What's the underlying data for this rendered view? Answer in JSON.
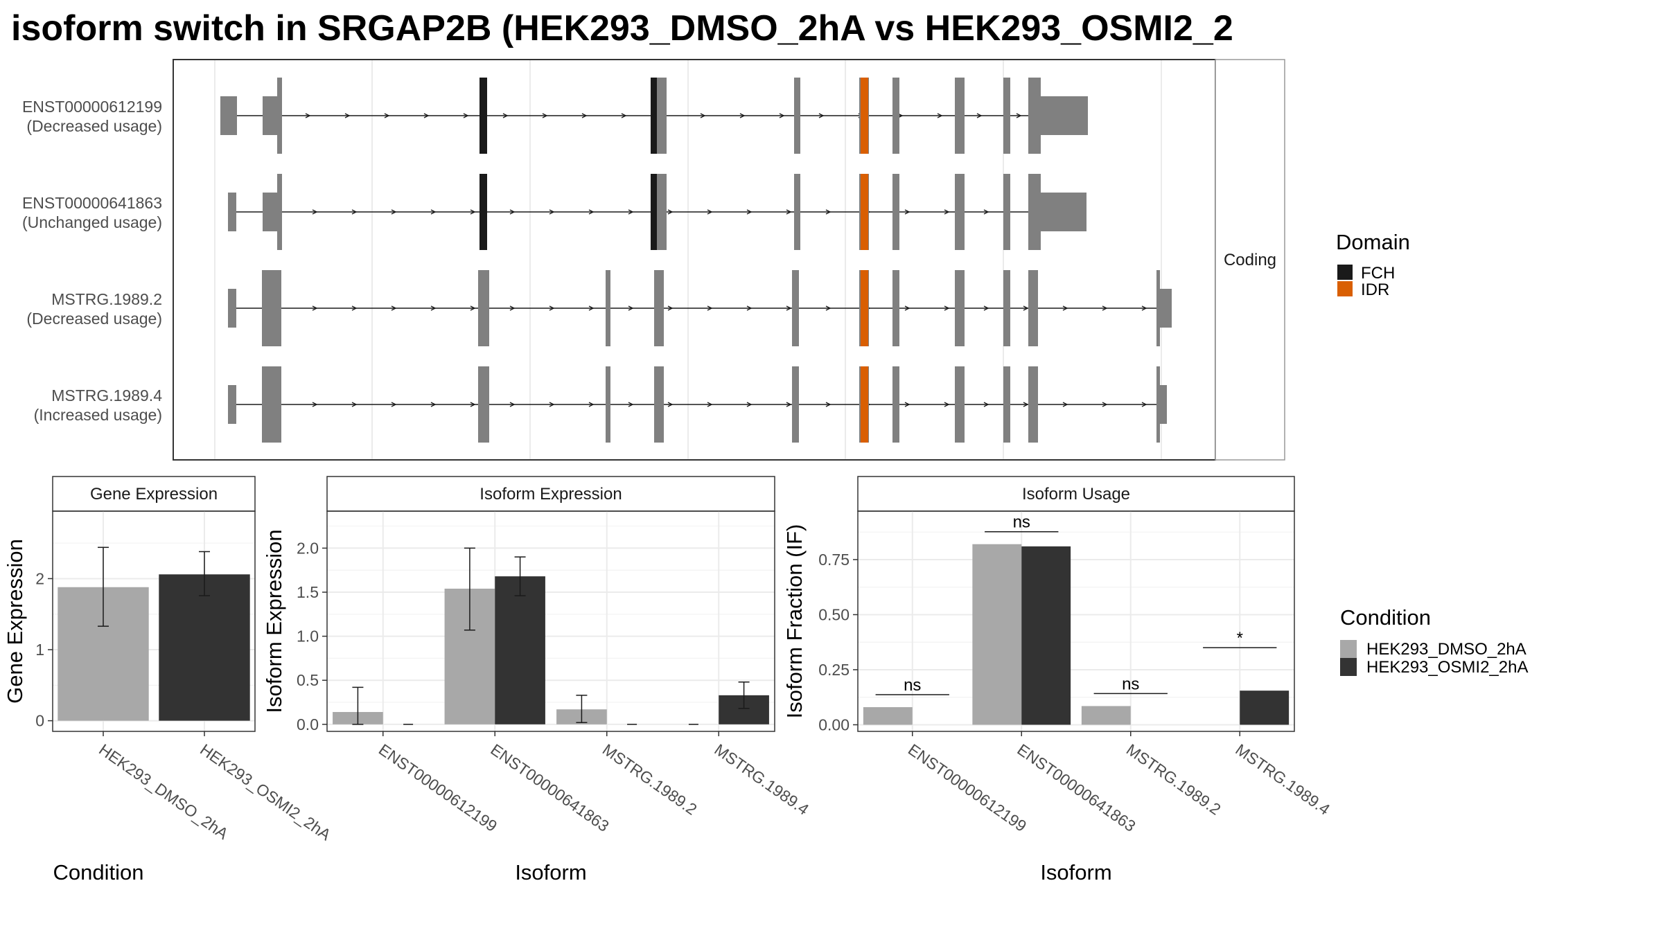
{
  "title": "isoform switch in SRGAP2B (HEK293_DMSO_2hA vs HEK293_OSMI2_2",
  "colors": {
    "dmso": "#a8a8a8",
    "osmi": "#333333",
    "exon": "#808080",
    "fch": "#1a1a1a",
    "idr": "#d95f02",
    "panel_border": "#333333",
    "strip_fill": "#ffffff",
    "grid": "#ebebeb"
  },
  "structure": {
    "strip_label": "Coding",
    "transcripts": [
      {
        "id": "ENST00000612199",
        "usage": "(Decreased usage)"
      },
      {
        "id": "ENST00000641863",
        "usage": "(Unchanged usage)"
      },
      {
        "id": "MSTRG.1989.2",
        "usage": "(Decreased usage)"
      },
      {
        "id": "MSTRG.1989.4",
        "usage": "(Increased usage)"
      }
    ]
  },
  "domain_legend": {
    "title": "Domain",
    "items": [
      {
        "label": "FCH",
        "color": "#1a1a1a"
      },
      {
        "label": "IDR",
        "color": "#d95f02"
      }
    ]
  },
  "condition_legend": {
    "title": "Condition",
    "items": [
      {
        "label": "HEK293_DMSO_2hA",
        "color": "#a8a8a8"
      },
      {
        "label": "HEK293_OSMI2_2hA",
        "color": "#333333"
      }
    ]
  },
  "chart_data": [
    {
      "type": "bar",
      "title": "Gene Expression",
      "xlabel": "Condition",
      "ylabel": "Gene Expression",
      "ylim": [
        -0.15,
        2.95
      ],
      "yticks": [
        0,
        1,
        2
      ],
      "categories": [
        "HEK293_DMSO_2hA",
        "HEK293_OSMI2_2hA"
      ],
      "values": [
        1.88,
        2.06
      ],
      "error_low": [
        1.33,
        1.76
      ],
      "error_high": [
        2.44,
        2.38
      ],
      "colors": [
        "#a8a8a8",
        "#333333"
      ]
    },
    {
      "type": "bar",
      "title": "Isoform Expression",
      "xlabel": "Isoform",
      "ylabel": "Isoform Expression",
      "ylim": [
        -0.08,
        2.42
      ],
      "yticks": [
        0.0,
        0.5,
        1.0,
        1.5,
        2.0
      ],
      "categories": [
        "ENST00000612199",
        "ENST00000641863",
        "MSTRG.1989.2",
        "MSTRG.1989.4"
      ],
      "series": [
        {
          "name": "HEK293_DMSO_2hA",
          "values": [
            0.14,
            1.54,
            0.17,
            0.0
          ],
          "error_low": [
            0.0,
            1.07,
            0.02,
            0.0
          ],
          "error_high": [
            0.42,
            2.0,
            0.33,
            0.0
          ]
        },
        {
          "name": "HEK293_OSMI2_2hA",
          "values": [
            0.0,
            1.68,
            0.0,
            0.33
          ],
          "error_low": [
            0.0,
            1.46,
            0.0,
            0.18
          ],
          "error_high": [
            0.0,
            1.9,
            0.0,
            0.48
          ]
        }
      ]
    },
    {
      "type": "bar",
      "title": "Isoform Usage",
      "xlabel": "Isoform",
      "ylabel": "Isoform Fraction (IF)",
      "ylim": [
        -0.03,
        0.97
      ],
      "yticks": [
        0.0,
        0.25,
        0.5,
        0.75
      ],
      "categories": [
        "ENST00000612199",
        "ENST00000641863",
        "MSTRG.1989.2",
        "MSTRG.1989.4"
      ],
      "series": [
        {
          "name": "HEK293_DMSO_2hA",
          "values": [
            0.08,
            0.82,
            0.085,
            0.0
          ]
        },
        {
          "name": "HEK293_OSMI2_2hA",
          "values": [
            0.0,
            0.81,
            0.0,
            0.155
          ]
        }
      ],
      "significance": [
        "ns",
        "ns",
        "ns",
        "*"
      ]
    }
  ]
}
